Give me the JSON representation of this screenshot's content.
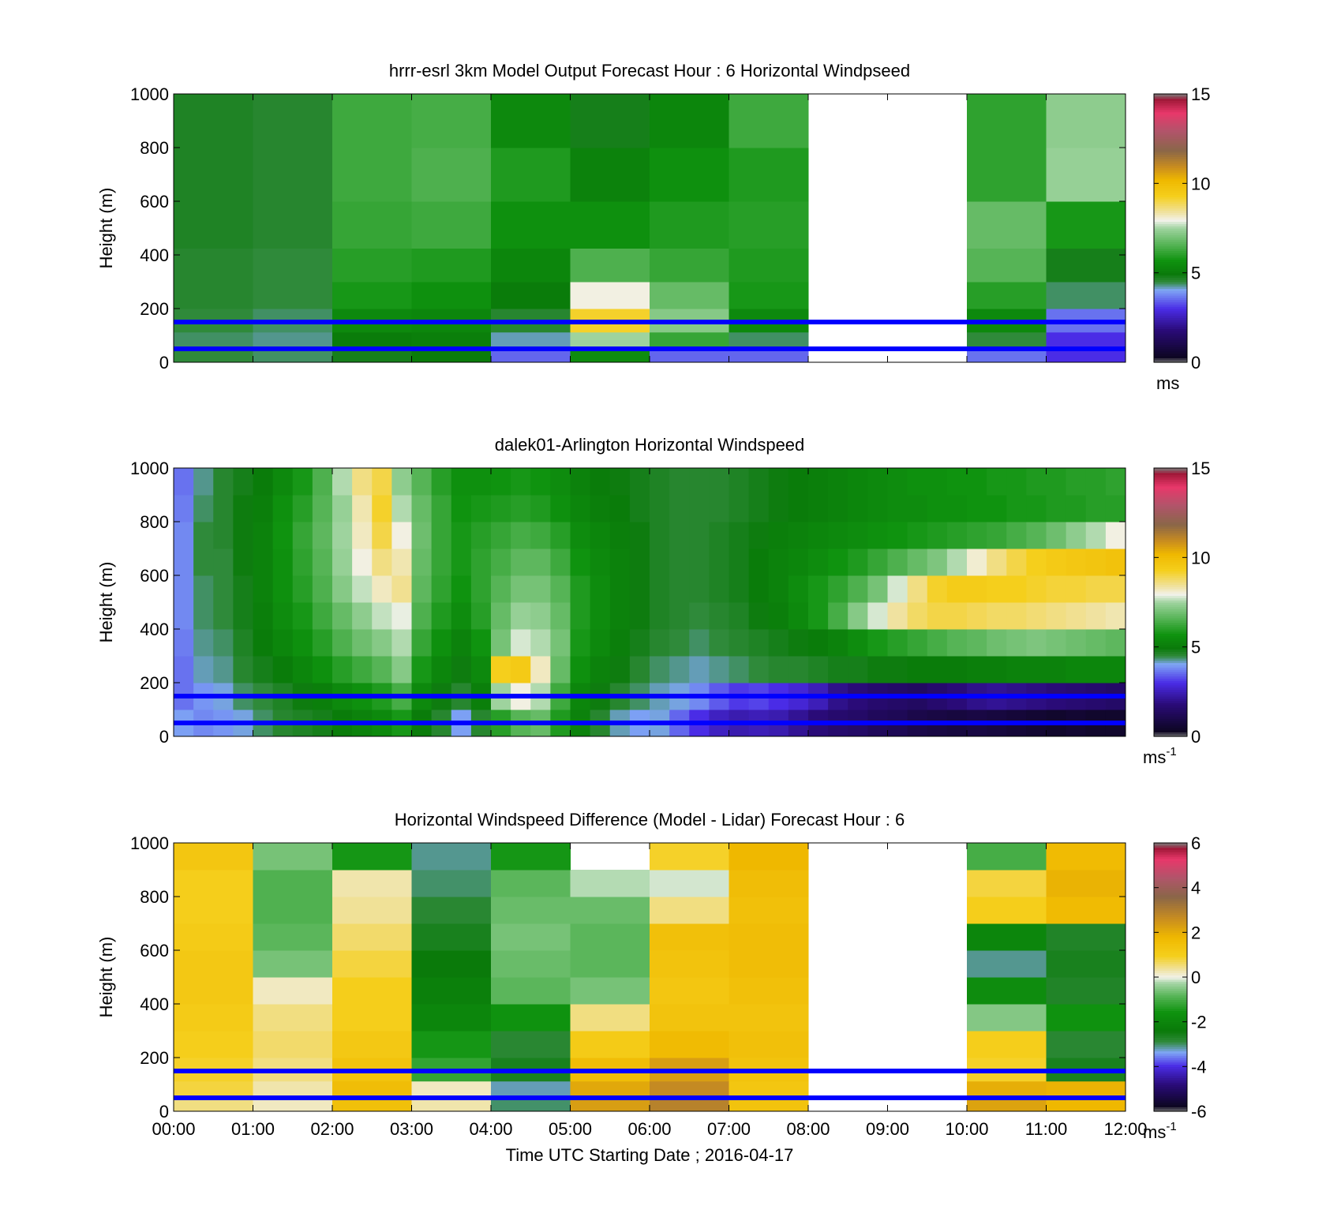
{
  "figure": {
    "xlabel": "Time UTC  Starting Date ; 2016-04-17",
    "x_ticks": [
      "00:00",
      "01:00",
      "02:00",
      "03:00",
      "04:00",
      "05:00",
      "06:00",
      "07:00",
      "08:00",
      "09:00",
      "10:00",
      "11:00",
      "12:00"
    ]
  },
  "chart_data": [
    {
      "type": "heatmap",
      "title": "hrrr-esrl 3km Model Output   Forecast Hour : 6 Horizontal Windpseed",
      "ylabel": "Height (m)",
      "xlim": [
        0,
        12
      ],
      "ylim": [
        0,
        1000
      ],
      "y_ticks": [
        "0",
        "200",
        "400",
        "600",
        "800",
        "1000"
      ],
      "colorbar": {
        "ticks": [
          "0",
          "5",
          "10",
          "15"
        ],
        "range": [
          0,
          15
        ],
        "unit": "ms"
      },
      "blue_lines_height_m": [
        50,
        150
      ],
      "x_hours": [
        0,
        1,
        2,
        3,
        4,
        5,
        6,
        7,
        8,
        9,
        10,
        11
      ],
      "heights_m": [
        25,
        75,
        150,
        250,
        350,
        500,
        700,
        900
      ],
      "values_mps": [
        [
          4.5,
          4.4,
          4.8,
          5.0,
          3.5,
          5.5,
          3.5,
          3.5,
          null,
          null,
          3.6,
          3.0
        ],
        [
          4.4,
          4.3,
          5.0,
          5.1,
          4.2,
          7.5,
          6.2,
          4.4,
          null,
          null,
          4.5,
          3.0
        ],
        [
          4.5,
          4.4,
          5.4,
          5.3,
          4.6,
          9.2,
          7.2,
          5.4,
          null,
          null,
          5.4,
          3.6
        ],
        [
          4.6,
          4.5,
          5.8,
          5.6,
          5.0,
          8.0,
          6.8,
          5.8,
          null,
          null,
          6.0,
          4.4
        ],
        [
          4.6,
          4.5,
          6.0,
          5.9,
          5.3,
          6.5,
          6.2,
          5.9,
          null,
          null,
          6.6,
          4.8
        ],
        [
          4.7,
          4.6,
          6.2,
          6.3,
          5.6,
          5.6,
          5.9,
          6.0,
          null,
          null,
          6.8,
          5.8
        ],
        [
          4.7,
          4.6,
          6.3,
          6.5,
          5.9,
          5.2,
          5.6,
          5.9,
          null,
          null,
          6.1,
          7.4
        ],
        [
          4.7,
          4.6,
          6.3,
          6.4,
          5.4,
          4.8,
          5.3,
          6.3,
          null,
          null,
          6.1,
          7.3
        ]
      ]
    },
    {
      "type": "heatmap",
      "title": "dalek01-Arlington  Horizontal Windspeed",
      "ylabel": "Height (m)",
      "xlim": [
        0,
        12
      ],
      "ylim": [
        0,
        1000
      ],
      "y_ticks": [
        "0",
        "200",
        "400",
        "600",
        "800",
        "1000"
      ],
      "colorbar": {
        "ticks": [
          "0",
          "5",
          "10",
          "15"
        ],
        "range": [
          0,
          15
        ],
        "unit": "ms",
        "unit_superscript": "-1"
      },
      "blue_lines_height_m": [
        50,
        150
      ],
      "x_hours": [
        0.125,
        0.375,
        0.625,
        0.875,
        1.125,
        1.375,
        1.625,
        1.875,
        2.125,
        2.375,
        2.625,
        2.875,
        3.125,
        3.375,
        3.625,
        3.875,
        4.125,
        4.375,
        4.625,
        4.875,
        5.125,
        5.375,
        5.625,
        5.875,
        6.125,
        6.375,
        6.625,
        6.875,
        7.125,
        7.375,
        7.625,
        7.875,
        8.125,
        8.375,
        8.625,
        8.875,
        9.125,
        9.375,
        9.625,
        9.875,
        10.125,
        10.375,
        10.625,
        10.875,
        11.125,
        11.375,
        11.625,
        11.875
      ],
      "heights_m": [
        50,
        150,
        250,
        350,
        450,
        550,
        650,
        750,
        850,
        950
      ],
      "values_mps": [
        [
          4.0,
          3.8,
          3.9,
          4.1,
          4.4,
          4.6,
          4.7,
          4.8,
          5.0,
          5.2,
          5.4,
          5.8,
          5.0,
          4.6,
          4.0,
          4.6,
          6.0,
          6.6,
          6.8,
          5.9,
          5.2,
          4.6,
          4.2,
          4.0,
          4.1,
          3.5,
          3.0,
          2.6,
          2.4,
          2.5,
          2.4,
          2.1,
          1.8,
          1.6,
          1.5,
          1.3,
          1.2,
          1.0,
          0.9,
          0.8,
          0.9,
          0.8,
          0.7,
          0.6,
          0.5,
          0.6,
          0.5,
          0.5
        ],
        [
          3.6,
          3.9,
          4.1,
          4.4,
          4.5,
          4.7,
          4.9,
          5.1,
          5.4,
          5.6,
          5.9,
          6.4,
          5.4,
          4.9,
          4.6,
          5.1,
          7.5,
          8.0,
          7.6,
          6.3,
          5.3,
          4.9,
          4.6,
          4.4,
          4.2,
          4.1,
          3.8,
          3.4,
          3.1,
          3.2,
          3.0,
          2.8,
          2.5,
          2.0,
          1.8,
          1.6,
          1.5,
          1.4,
          1.6,
          1.8,
          2.0,
          2.1,
          2.0,
          1.9,
          1.8,
          1.7,
          1.6,
          1.5
        ],
        [
          3.6,
          4.2,
          4.3,
          4.6,
          4.8,
          5.0,
          5.3,
          5.6,
          6.0,
          6.3,
          6.6,
          7.2,
          5.8,
          5.3,
          4.9,
          5.4,
          9.3,
          9.5,
          8.2,
          6.8,
          5.6,
          5.2,
          4.9,
          4.6,
          4.4,
          4.3,
          4.2,
          4.3,
          4.4,
          4.5,
          4.6,
          4.6,
          4.7,
          4.8,
          4.8,
          4.9,
          4.9,
          5.0,
          5.0,
          5.0,
          5.1,
          5.1,
          5.2,
          5.2,
          5.2,
          5.3,
          5.3,
          5.3
        ],
        [
          3.7,
          4.3,
          4.4,
          4.7,
          5.0,
          5.3,
          5.6,
          6.0,
          6.5,
          6.9,
          7.2,
          7.6,
          6.2,
          5.6,
          5.2,
          5.7,
          7.0,
          7.8,
          7.6,
          7.0,
          5.8,
          5.4,
          5.1,
          4.8,
          4.6,
          4.5,
          4.4,
          4.5,
          4.6,
          4.7,
          4.8,
          4.9,
          5.0,
          5.2,
          5.5,
          5.8,
          6.0,
          6.2,
          6.4,
          6.6,
          6.7,
          6.9,
          7.0,
          7.1,
          7.0,
          6.9,
          6.8,
          6.7
        ],
        [
          3.8,
          4.4,
          4.5,
          4.8,
          5.1,
          5.5,
          5.8,
          6.3,
          6.8,
          7.3,
          7.7,
          7.9,
          6.5,
          5.9,
          5.5,
          6.0,
          6.8,
          7.4,
          7.3,
          6.8,
          5.9,
          5.5,
          5.2,
          4.9,
          4.7,
          4.6,
          4.5,
          4.6,
          4.7,
          4.9,
          5.1,
          5.4,
          5.8,
          6.4,
          7.2,
          7.8,
          8.4,
          8.8,
          9.0,
          9.0,
          8.9,
          8.8,
          8.8,
          8.7,
          8.6,
          8.5,
          8.4,
          8.3
        ],
        [
          3.8,
          4.4,
          4.5,
          4.8,
          5.2,
          5.6,
          6.0,
          6.5,
          7.2,
          7.7,
          8.2,
          8.5,
          6.7,
          6.1,
          5.7,
          6.1,
          6.6,
          7.0,
          7.0,
          6.6,
          5.9,
          5.5,
          5.2,
          4.9,
          4.7,
          4.6,
          4.6,
          4.7,
          4.8,
          5.0,
          5.2,
          5.5,
          5.8,
          6.1,
          6.5,
          7.0,
          7.8,
          8.6,
          9.2,
          9.4,
          9.4,
          9.3,
          9.3,
          9.2,
          9.1,
          9.1,
          9.0,
          9.0
        ],
        [
          3.8,
          4.5,
          4.5,
          4.9,
          5.2,
          5.6,
          6.1,
          6.6,
          7.4,
          8.0,
          8.6,
          8.3,
          6.8,
          6.2,
          5.8,
          6.1,
          6.4,
          6.7,
          6.7,
          6.3,
          5.7,
          5.4,
          5.2,
          4.9,
          4.7,
          4.6,
          4.6,
          4.7,
          4.8,
          5.0,
          5.2,
          5.3,
          5.5,
          5.7,
          5.9,
          6.2,
          6.5,
          6.8,
          7.1,
          7.6,
          8.1,
          8.6,
          9.0,
          9.3,
          9.5,
          9.6,
          9.7,
          9.8
        ],
        [
          3.8,
          4.5,
          4.6,
          4.9,
          5.2,
          5.7,
          6.2,
          6.7,
          7.5,
          8.2,
          9.0,
          8.0,
          6.9,
          6.2,
          5.8,
          6.0,
          6.2,
          6.4,
          6.3,
          6.0,
          5.5,
          5.3,
          5.1,
          4.9,
          4.7,
          4.6,
          4.6,
          4.7,
          4.8,
          4.9,
          5.1,
          5.2,
          5.3,
          5.4,
          5.5,
          5.6,
          5.7,
          5.8,
          5.9,
          6.0,
          6.1,
          6.2,
          6.4,
          6.6,
          6.9,
          7.3,
          7.6,
          8.0
        ],
        [
          3.7,
          4.4,
          4.6,
          4.9,
          5.1,
          5.6,
          6.0,
          6.6,
          7.4,
          8.3,
          9.2,
          7.6,
          6.8,
          6.2,
          5.7,
          5.8,
          5.9,
          6.0,
          5.9,
          5.6,
          5.3,
          5.1,
          5.0,
          4.8,
          4.7,
          4.6,
          4.6,
          4.6,
          4.7,
          4.8,
          4.9,
          5.0,
          5.1,
          5.2,
          5.3,
          5.4,
          5.5,
          5.5,
          5.6,
          5.6,
          5.7,
          5.7,
          5.8,
          5.8,
          5.9,
          5.9,
          6.0,
          6.0
        ],
        [
          3.6,
          4.3,
          4.6,
          4.8,
          5.0,
          5.4,
          5.8,
          6.5,
          7.6,
          8.6,
          9.0,
          7.3,
          6.6,
          6.0,
          5.6,
          5.6,
          5.7,
          5.8,
          5.7,
          5.5,
          5.2,
          5.0,
          4.9,
          4.8,
          4.7,
          4.6,
          4.6,
          4.6,
          4.7,
          4.8,
          4.9,
          5.0,
          5.1,
          5.2,
          5.3,
          5.4,
          5.5,
          5.6,
          5.6,
          5.7,
          5.7,
          5.8,
          5.8,
          5.9,
          5.9,
          6.0,
          6.0,
          6.1
        ]
      ]
    },
    {
      "type": "heatmap",
      "title": "Horizontal Windspeed Difference (Model - Lidar) Forecast Hour : 6",
      "ylabel": "Height (m)",
      "xlim": [
        0,
        12
      ],
      "ylim": [
        0,
        1000
      ],
      "y_ticks": [
        "0",
        "200",
        "400",
        "600",
        "800",
        "1000"
      ],
      "colorbar": {
        "ticks": [
          "-6",
          "-4",
          "-2",
          "0",
          "2",
          "4",
          "6"
        ],
        "range": [
          -6,
          6
        ],
        "unit": "ms",
        "unit_superscript": "-1"
      },
      "blue_lines_height_m": [
        50,
        150
      ],
      "x_hours": [
        0,
        1,
        2,
        3,
        4,
        5,
        6,
        7,
        8,
        9,
        10,
        11
      ],
      "heights_m": [
        25,
        75,
        150,
        250,
        350,
        450,
        550,
        650,
        750,
        850,
        950
      ],
      "values_mps": [
        [
          0.5,
          0.2,
          1.5,
          0.3,
          -3.0,
          2.3,
          2.9,
          1.4,
          null,
          null,
          2.2,
          1.8
        ],
        [
          0.8,
          0.3,
          1.6,
          0.2,
          -3.2,
          2.1,
          2.7,
          1.3,
          null,
          null,
          2.0,
          1.9
        ],
        [
          0.9,
          0.5,
          1.4,
          -1.2,
          -2.6,
          1.6,
          2.3,
          1.4,
          null,
          null,
          0.9,
          -2.6
        ],
        [
          1.0,
          0.6,
          1.2,
          -1.5,
          -2.8,
          1.1,
          1.7,
          1.5,
          null,
          null,
          1.0,
          -2.8
        ],
        [
          1.1,
          0.5,
          1.0,
          -2.0,
          -1.6,
          0.5,
          1.4,
          1.4,
          null,
          null,
          -0.5,
          -1.6
        ],
        [
          1.2,
          0.2,
          1.0,
          -2.2,
          -0.8,
          -0.6,
          1.3,
          1.5,
          null,
          null,
          -1.8,
          -2.7
        ],
        [
          1.2,
          -0.6,
          0.8,
          -2.4,
          -0.7,
          -0.8,
          1.4,
          1.6,
          null,
          null,
          -3.1,
          -2.6
        ],
        [
          1.1,
          -0.8,
          0.6,
          -2.6,
          -0.6,
          -0.8,
          1.5,
          1.6,
          null,
          null,
          -2.0,
          -2.7
        ],
        [
          1.0,
          -0.9,
          0.4,
          -2.8,
          -0.7,
          -0.7,
          0.5,
          1.5,
          null,
          null,
          1.0,
          1.7
        ],
        [
          1.0,
          -0.9,
          0.3,
          -3.0,
          -0.8,
          -0.2,
          -0.1,
          1.6,
          null,
          null,
          0.8,
          1.9
        ],
        [
          1.3,
          -0.6,
          -1.5,
          -3.1,
          -1.5,
          null,
          0.9,
          1.8,
          null,
          null,
          -1.0,
          1.7
        ]
      ]
    }
  ]
}
